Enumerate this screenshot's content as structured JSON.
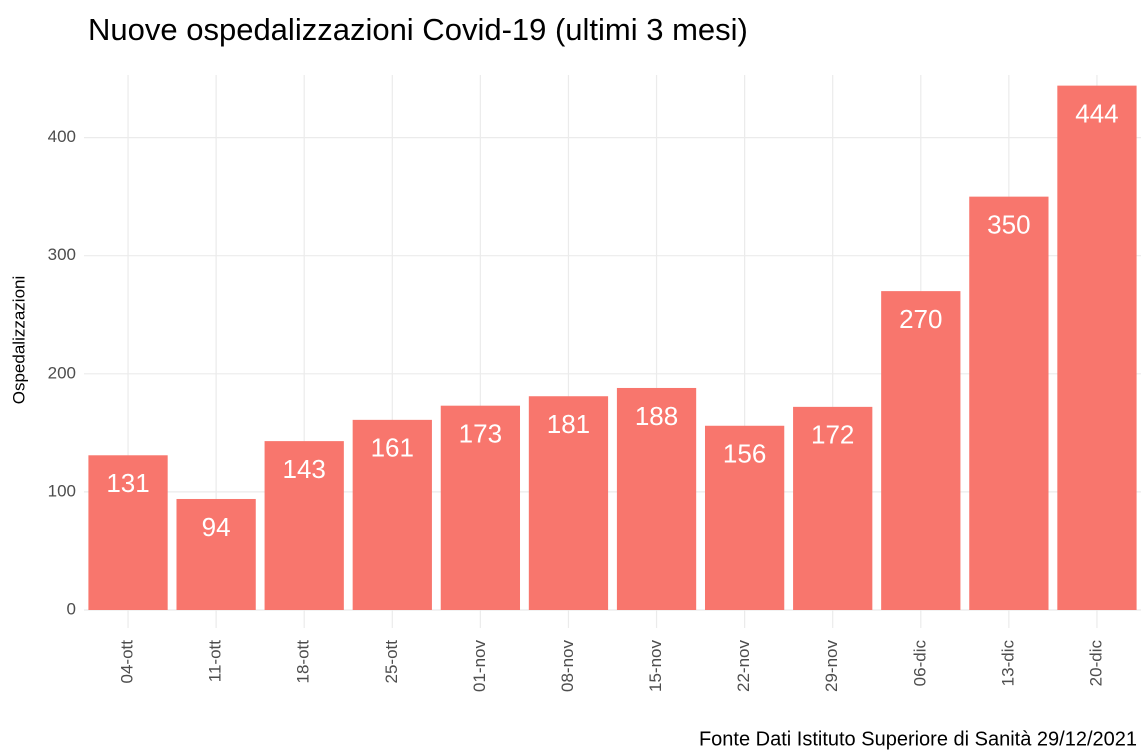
{
  "chart_data": {
    "type": "bar",
    "title": "Nuove ospedalizzazioni Covid-19 (ultimi 3 mesi)",
    "y_label": "Ospedalizzazioni",
    "caption": "Fonte Dati Istituto Superiore di Sanità 29/12/2021",
    "categories": [
      "04-ott",
      "11-ott",
      "18-ott",
      "25-ott",
      "01-nov",
      "08-nov",
      "15-nov",
      "22-nov",
      "29-nov",
      "06-dic",
      "13-dic",
      "20-dic"
    ],
    "values": [
      131,
      94,
      143,
      161,
      173,
      181,
      188,
      156,
      172,
      270,
      350,
      444
    ],
    "color": "#f8766d",
    "ylim": [
      0,
      453
    ],
    "yticks": [
      0,
      100,
      200,
      300,
      400
    ],
    "grid": true
  }
}
